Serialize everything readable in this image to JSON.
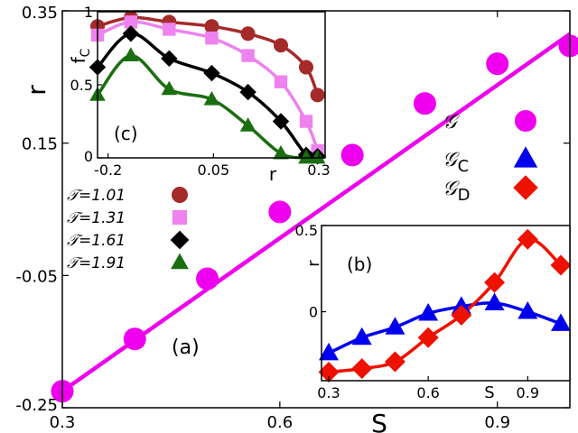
{
  "chart_data": [
    {
      "id": "main",
      "panel_label": "(a)",
      "type": "scatter",
      "xlabel": "S",
      "ylabel": "r",
      "xlim": [
        0.3,
        1.0
      ],
      "ylim": [
        -0.25,
        0.35
      ],
      "xticks": [
        "0.3",
        "0.6",
        "0.9"
      ],
      "yticks": [
        "-0.25",
        "-0.05",
        "0.15",
        "0.35"
      ],
      "series": [
        {
          "name": "𝒢",
          "color": "#ee00ee",
          "marker": "circle",
          "x": [
            0.3,
            0.4,
            0.5,
            0.6,
            0.7,
            0.8,
            0.9,
            1.0
          ],
          "y": [
            -0.225,
            -0.146,
            -0.055,
            0.046,
            0.132,
            0.21,
            0.27,
            0.297
          ],
          "line": {
            "x": [
              0.3,
              1.0
            ],
            "y": [
              -0.225,
              0.315
            ]
          }
        }
      ],
      "legend": {
        "position": "right",
        "entries": [
          {
            "label": "𝒢",
            "sub": "",
            "color": "#ee00ee",
            "marker": "circle"
          },
          {
            "label": "𝒢",
            "sub": "C",
            "color": "#0000ee",
            "marker": "triangle"
          },
          {
            "label": "𝒢",
            "sub": "D",
            "color": "#ee1100",
            "marker": "diamond"
          }
        ]
      }
    },
    {
      "id": "inset_b",
      "panel_label": "(b)",
      "type": "scatter",
      "xlabel": "S",
      "ylabel": "r",
      "xlim": [
        0.3,
        1.0
      ],
      "ylim": [
        -0.4,
        0.5
      ],
      "xticks": [
        "0.3",
        "0.6",
        "0.9"
      ],
      "yticks": [
        "0",
        "0.5"
      ],
      "series": [
        {
          "name": "𝒢C",
          "color": "#0000ee",
          "marker": "triangle",
          "x": [
            0.3,
            0.4,
            0.5,
            0.6,
            0.7,
            0.8,
            0.9,
            1.0
          ],
          "y": [
            -0.24,
            -0.15,
            -0.09,
            -0.01,
            0.03,
            0.05,
            0.0,
            -0.07
          ]
        },
        {
          "name": "𝒢D",
          "color": "#ee1100",
          "marker": "diamond",
          "x": [
            0.3,
            0.4,
            0.5,
            0.6,
            0.7,
            0.8,
            0.9,
            1.0
          ],
          "y": [
            -0.35,
            -0.33,
            -0.29,
            -0.15,
            -0.02,
            0.17,
            0.42,
            0.27
          ]
        }
      ]
    },
    {
      "id": "inset_c",
      "panel_label": "(c)",
      "type": "scatter",
      "xlabel": "r",
      "ylabel": "f",
      "ylabel_sub": "C",
      "xlim": [
        -0.225,
        0.315
      ],
      "ylim": [
        0.0,
        1.0
      ],
      "xticks": [
        "-0.2",
        "0.05",
        "0.3"
      ],
      "yticks": [
        "0",
        "0.5",
        "1"
      ],
      "series": [
        {
          "name": "𝒯=1.01",
          "color": "#a52a2a",
          "marker": "circle",
          "x": [
            -0.225,
            -0.146,
            -0.055,
            0.046,
            0.132,
            0.21,
            0.27,
            0.297
          ],
          "y": [
            0.9,
            0.96,
            0.93,
            0.9,
            0.85,
            0.77,
            0.62,
            0.43
          ]
        },
        {
          "name": "𝒯=1.31",
          "color": "#ee82ee",
          "marker": "square",
          "x": [
            -0.225,
            -0.146,
            -0.055,
            0.046,
            0.132,
            0.21,
            0.27,
            0.297
          ],
          "y": [
            0.84,
            0.93,
            0.88,
            0.82,
            0.7,
            0.52,
            0.25,
            0.05
          ]
        },
        {
          "name": "𝒯=1.61",
          "color": "#000000",
          "marker": "diamond",
          "x": [
            -0.225,
            -0.146,
            -0.055,
            0.046,
            0.132,
            0.21,
            0.27,
            0.297
          ],
          "y": [
            0.62,
            0.85,
            0.68,
            0.58,
            0.45,
            0.25,
            0.02,
            0.01
          ]
        },
        {
          "name": "𝒯=1.91",
          "color": "#1a6e10",
          "marker": "triangle",
          "x": [
            -0.225,
            -0.146,
            -0.055,
            0.046,
            0.132,
            0.21,
            0.27,
            0.297
          ],
          "y": [
            0.43,
            0.7,
            0.47,
            0.4,
            0.22,
            0.03,
            0.0,
            0.0
          ]
        }
      ],
      "legend": {
        "position": "left",
        "entries": [
          {
            "label": "𝒯=1.01",
            "color": "#a52a2a",
            "marker": "circle"
          },
          {
            "label": "𝒯=1.31",
            "color": "#ee82ee",
            "marker": "square"
          },
          {
            "label": "𝒯=1.61",
            "color": "#000000",
            "marker": "diamond"
          },
          {
            "label": "𝒯=1.91",
            "color": "#1a6e10",
            "marker": "triangle"
          }
        ]
      }
    }
  ]
}
